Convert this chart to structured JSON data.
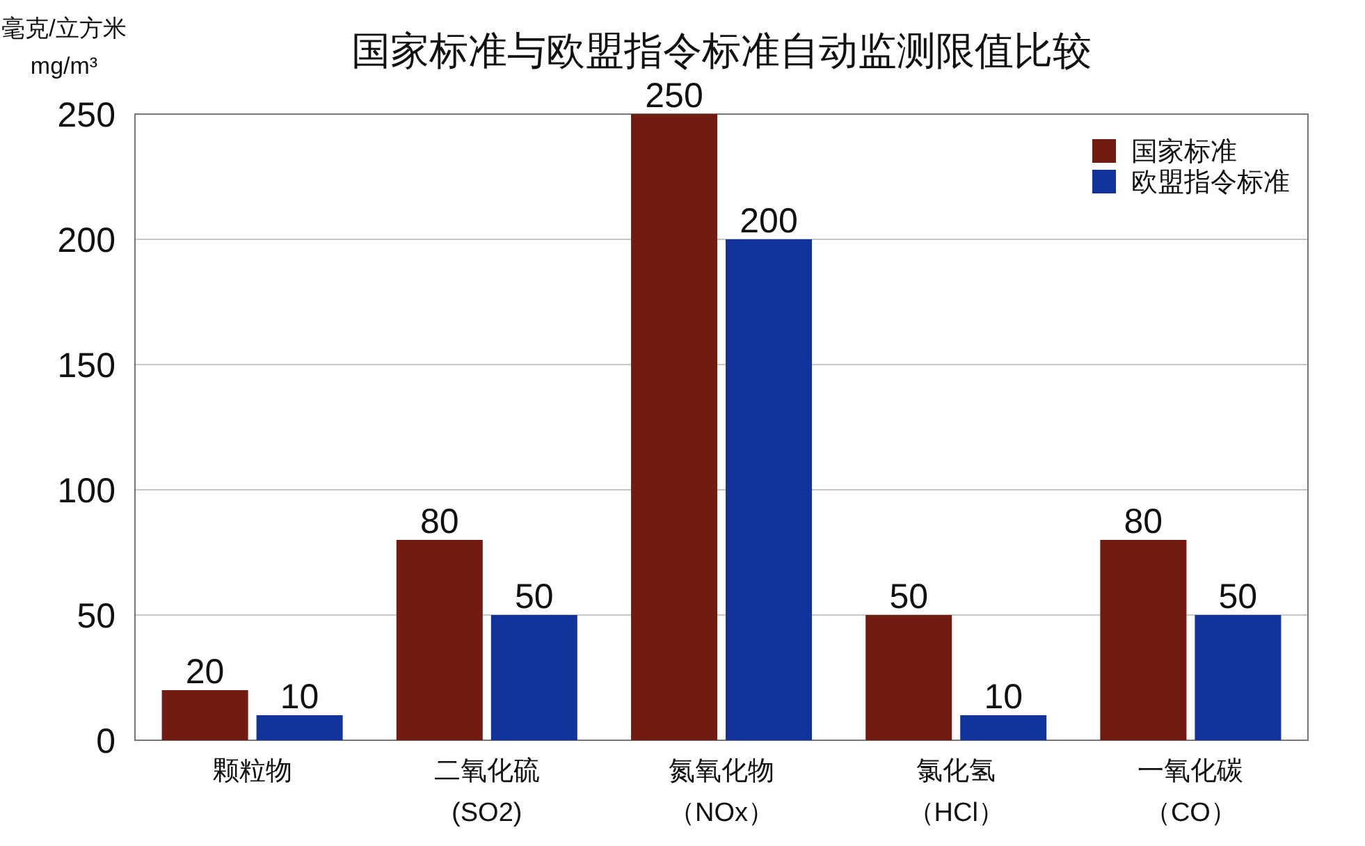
{
  "chart_data": {
    "type": "bar",
    "title": "国家标准与欧盟指令标准自动监测限值比较",
    "ylabel": "毫克/立方米\nmg/m³",
    "categories": [
      "颗粒物",
      "二氧化硫(SO2)",
      "氮氧化物（NOx）",
      "氯化氢（HCl）",
      "一氧化碳（CO）"
    ],
    "series": [
      {
        "name": "国家标准",
        "color": "#721b10",
        "values": [
          20,
          80,
          250,
          50,
          80
        ]
      },
      {
        "name": "欧盟指令标准",
        "color": "#12339a",
        "values": [
          10,
          50,
          200,
          10,
          50
        ]
      }
    ],
    "ylim": [
      0,
      250
    ],
    "yticks": [
      0,
      50,
      100,
      150,
      200,
      250
    ],
    "grid": "y",
    "legend": "top right",
    "data_labels": true
  }
}
